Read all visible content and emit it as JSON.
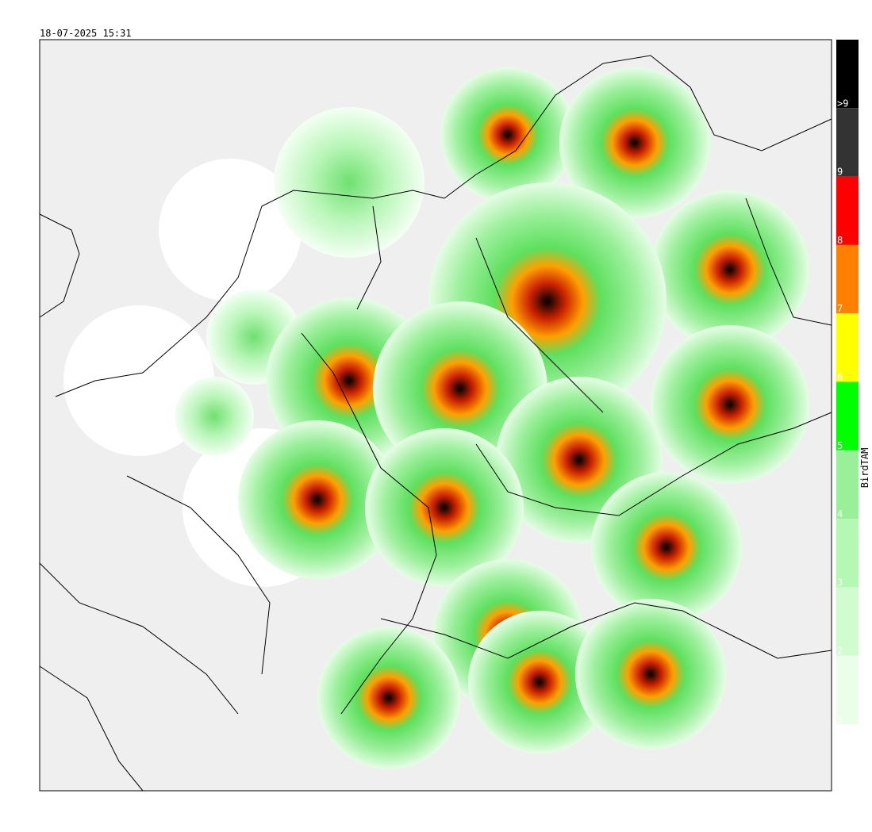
{
  "timestamp": "18-07-2025 15:31",
  "legend": {
    "title": "BirdTAM",
    "levels": [
      {
        "label": ">9",
        "color": "#000000"
      },
      {
        "label": "9",
        "color": "#333333"
      },
      {
        "label": "8",
        "color": "#ff0000"
      },
      {
        "label": "7",
        "color": "#ff8000"
      },
      {
        "label": "6",
        "color": "#ffff00"
      },
      {
        "label": "5",
        "color": "#00ff00"
      },
      {
        "label": "4",
        "color": "#99f099"
      },
      {
        "label": "3",
        "color": "#b4f8b4"
      },
      {
        "label": "2",
        "color": "#d0fcd0"
      },
      {
        "label": "1",
        "color": "#eafeea"
      }
    ]
  }
}
